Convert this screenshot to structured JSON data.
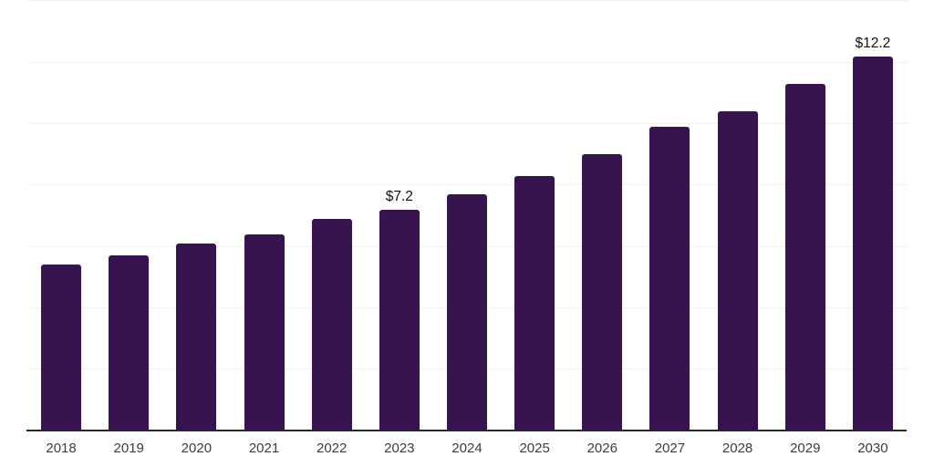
{
  "chart_data": {
    "type": "bar",
    "title": "",
    "xlabel": "",
    "ylabel": "",
    "categories": [
      "2018",
      "2019",
      "2020",
      "2021",
      "2022",
      "2023",
      "2024",
      "2025",
      "2026",
      "2027",
      "2028",
      "2029",
      "2030"
    ],
    "values": [
      5.4,
      5.7,
      6.1,
      6.4,
      6.9,
      7.2,
      7.7,
      8.3,
      9.0,
      9.9,
      10.4,
      11.3,
      12.2
    ],
    "data_labels": [
      "",
      "",
      "",
      "",
      "",
      "$7.2",
      "",
      "",
      "",
      "",
      "",
      "",
      "$12.2"
    ],
    "ylim": [
      0,
      14
    ],
    "gridline_step": 2,
    "grid": true,
    "legend": false,
    "y_axis_labels_visible": false,
    "colors": {
      "bar": "#371450",
      "axis_line": "#262626",
      "gridline": "#f0f0f0",
      "tick_label": "#3c3c3c",
      "data_label": "#111111",
      "background": "#ffffff"
    }
  }
}
